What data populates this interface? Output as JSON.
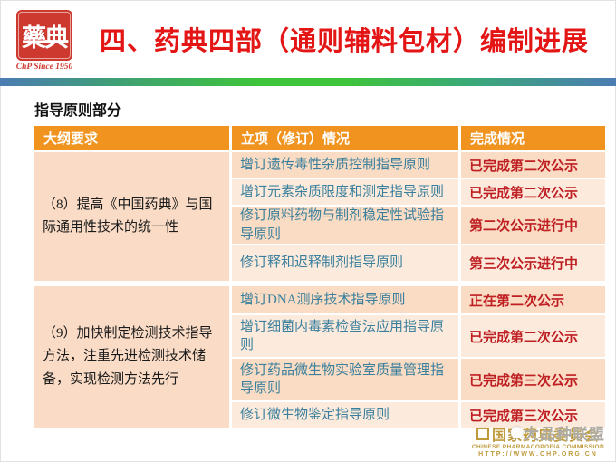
{
  "header": {
    "logo": {
      "seal_text": "藥典",
      "tagline": "ChP Since 1950"
    },
    "title": "四、药典四部（通则辅料包材）编制进展"
  },
  "section_title": "指导原则部分",
  "table": {
    "columns": [
      "大纲要求",
      "立项（修订）情况",
      "完成情况"
    ],
    "groups": [
      {
        "requirement": "（8）提高《中国药典》与国际通用性技术的统一性",
        "rows": [
          {
            "item": "增订遗传毒性杂质控制指导原则",
            "status": "已完成第二次公示"
          },
          {
            "item": "增订元素杂质限度和测定指导原则",
            "status": "已完成第二次公示"
          },
          {
            "item": "修订原料药物与制剂稳定性试验指导原则",
            "status": "第二次公示进行中"
          },
          {
            "item": "修订释和迟释制剂指导原则",
            "status": "第三次公示进行中"
          }
        ]
      },
      {
        "requirement": "（9）加快制定检测技术指导方法，注重先进检测技术储备，实现检测方法先行",
        "rows": [
          {
            "item": "增订DNA测序技术指导原则",
            "status": "正在第二次公示"
          },
          {
            "item": "增订细菌内毒素检查法应用指导原则",
            "status": "已完成第二次公示"
          },
          {
            "item": "修订药品微生物实验室质量管理指导原则",
            "status": "已完成第三次公示"
          },
          {
            "item": "修订微生物鉴定指导原则",
            "status": "已完成第三次公示"
          }
        ]
      }
    ]
  },
  "footer": {
    "org_cn": "国家药典委员会",
    "org_en": "CHINESE PHARMACOPOEIA COMMISSION",
    "url": "HTTP://WWW.CHP.ORG.CN",
    "watermark": "大品种联盟"
  },
  "colors": {
    "header_orange": "#f0941f",
    "row_dark": "#f9dcc3",
    "row_light": "#fcebdc",
    "requirement_bg": "#fadcc6",
    "item_teal": "#3a7f9d",
    "status_red": "#bf1e22",
    "title_red": "#e31515",
    "gold": "#bf9a3b"
  }
}
